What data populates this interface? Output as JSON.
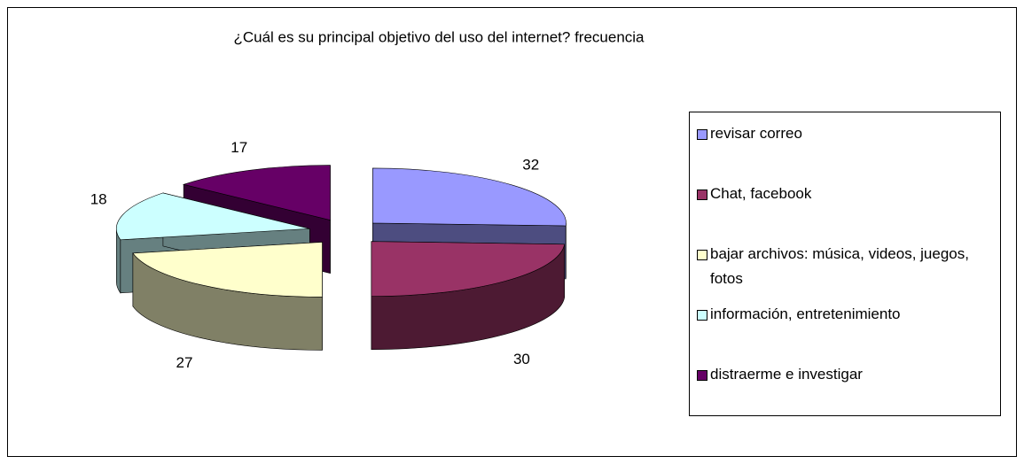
{
  "chart_data": {
    "type": "pie",
    "title": "¿Cuál es su principal objetivo del uso del internet? frecuencia",
    "categories": [
      "revisar correo",
      "Chat, facebook",
      "bajar archivos: música, videos, juegos, fotos",
      "información, entretenimiento",
      "distraerme e investigar"
    ],
    "values": [
      32,
      30,
      27,
      18,
      17
    ],
    "colors": [
      "#9999ff",
      "#993366",
      "#ffffcc",
      "#ccffff",
      "#660066"
    ]
  }
}
